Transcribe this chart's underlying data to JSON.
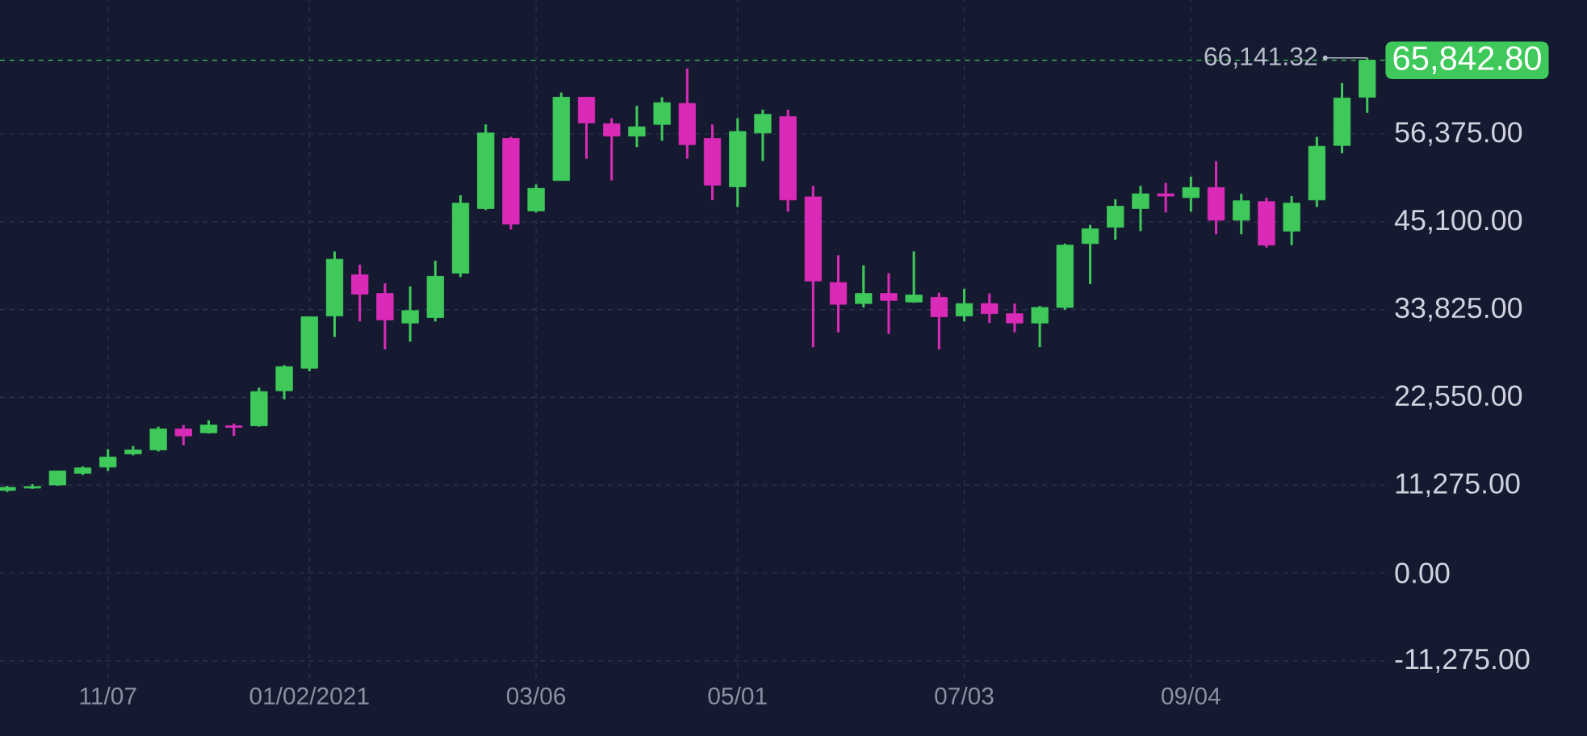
{
  "chart_data": {
    "type": "candlestick",
    "x": [
      "2020-10-10",
      "2020-10-17",
      "2020-10-24",
      "2020-10-31",
      "2020-11-07",
      "2020-11-14",
      "2020-11-21",
      "2020-11-28",
      "2020-12-05",
      "2020-12-12",
      "2020-12-19",
      "2020-12-26",
      "2021-01-02",
      "2021-01-09",
      "2021-01-16",
      "2021-01-23",
      "2021-01-30",
      "2021-02-06",
      "2021-02-13",
      "2021-02-20",
      "2021-02-27",
      "2021-03-06",
      "2021-03-13",
      "2021-03-20",
      "2021-03-27",
      "2021-04-03",
      "2021-04-10",
      "2021-04-17",
      "2021-04-24",
      "2021-05-01",
      "2021-05-08",
      "2021-05-15",
      "2021-05-22",
      "2021-05-29",
      "2021-06-05",
      "2021-06-12",
      "2021-06-19",
      "2021-06-26",
      "2021-07-03",
      "2021-07-10",
      "2021-07-17",
      "2021-07-24",
      "2021-07-31",
      "2021-08-07",
      "2021-08-14",
      "2021-08-21",
      "2021-08-28",
      "2021-09-04",
      "2021-09-11",
      "2021-09-18",
      "2021-09-25",
      "2021-10-02",
      "2021-10-09",
      "2021-10-16",
      "2021-10-23"
    ],
    "ohlc": [
      [
        10600,
        11200,
        10400,
        11000
      ],
      [
        10900,
        11400,
        10800,
        11100
      ],
      [
        11300,
        13100,
        11200,
        13100
      ],
      [
        12800,
        13700,
        12600,
        13500
      ],
      [
        13600,
        15900,
        13100,
        14900
      ],
      [
        15300,
        16300,
        15100,
        15800
      ],
      [
        15800,
        18800,
        15600,
        18500
      ],
      [
        18500,
        19000,
        16400,
        17600
      ],
      [
        18000,
        19600,
        17900,
        19000
      ],
      [
        18900,
        19200,
        17600,
        18700
      ],
      [
        18900,
        23800,
        18800,
        23300
      ],
      [
        23400,
        26700,
        22300,
        26500
      ],
      [
        26300,
        32900,
        25900,
        32900
      ],
      [
        33000,
        41300,
        30300,
        40300
      ],
      [
        38300,
        39600,
        32300,
        35800
      ],
      [
        35900,
        37200,
        28700,
        32500
      ],
      [
        32100,
        36800,
        29700,
        33700
      ],
      [
        32800,
        40100,
        32300,
        38100
      ],
      [
        38500,
        48500,
        38000,
        47500
      ],
      [
        46800,
        57600,
        46600,
        56500
      ],
      [
        55800,
        56000,
        44100,
        44800
      ],
      [
        46500,
        49900,
        46300,
        49400
      ],
      [
        50400,
        61700,
        50400,
        61100
      ],
      [
        61100,
        61100,
        53200,
        57800
      ],
      [
        57700,
        58400,
        50400,
        56100
      ],
      [
        56100,
        60000,
        54700,
        57300
      ],
      [
        57600,
        61100,
        55500,
        60400
      ],
      [
        60300,
        64800,
        53200,
        55000
      ],
      [
        55800,
        57600,
        47900,
        49800
      ],
      [
        49600,
        58400,
        47000,
        56700
      ],
      [
        56500,
        59500,
        52900,
        58900
      ],
      [
        58600,
        59500,
        46400,
        47900
      ],
      [
        48300,
        49700,
        29000,
        37500
      ],
      [
        37300,
        40800,
        30900,
        34500
      ],
      [
        34600,
        39500,
        34100,
        35900
      ],
      [
        35900,
        38500,
        30700,
        35000
      ],
      [
        34800,
        41300,
        34700,
        35700
      ],
      [
        35400,
        36000,
        28700,
        32900
      ],
      [
        33000,
        36500,
        32300,
        34600
      ],
      [
        34600,
        35900,
        32100,
        33300
      ],
      [
        33300,
        34600,
        30900,
        32100
      ],
      [
        32100,
        34300,
        29000,
        34100
      ],
      [
        34100,
        42300,
        33800,
        42100
      ],
      [
        42300,
        44700,
        37100,
        44200
      ],
      [
        44400,
        48000,
        42800,
        47100
      ],
      [
        46800,
        49700,
        43900,
        48700
      ],
      [
        48700,
        50100,
        46300,
        48400
      ],
      [
        48200,
        50900,
        46400,
        49500
      ],
      [
        49500,
        52900,
        43500,
        45300
      ],
      [
        45300,
        48700,
        43500,
        47800
      ],
      [
        47700,
        48200,
        41800,
        42100
      ],
      [
        43900,
        48400,
        42100,
        47500
      ],
      [
        47900,
        56000,
        47000,
        54800
      ],
      [
        54900,
        62900,
        53900,
        61000
      ],
      [
        61100,
        66141.32,
        59100,
        65842.8
      ]
    ],
    "colors": [
      "#3ec95a",
      "#3ec95a",
      "#3ec95a",
      "#3ec95a",
      "#3ec95a",
      "#3ec95a",
      "#3ec95a",
      "#d92bb8",
      "#3ec95a",
      "#d92bb8",
      "#3ec95a",
      "#3ec95a",
      "#3ec95a",
      "#3ec95a",
      "#d92bb8",
      "#d92bb8",
      "#3ec95a",
      "#3ec95a",
      "#3ec95a",
      "#3ec95a",
      "#d92bb8",
      "#3ec95a",
      "#3ec95a",
      "#d92bb8",
      "#d92bb8",
      "#3ec95a",
      "#3ec95a",
      "#d92bb8",
      "#d92bb8",
      "#3ec95a",
      "#3ec95a",
      "#d92bb8",
      "#d92bb8",
      "#d92bb8",
      "#3ec95a",
      "#d92bb8",
      "#3ec95a",
      "#d92bb8",
      "#3ec95a",
      "#d92bb8",
      "#d92bb8",
      "#3ec95a",
      "#3ec95a",
      "#3ec95a",
      "#3ec95a",
      "#3ec95a",
      "#d92bb8",
      "#3ec95a",
      "#d92bb8",
      "#3ec95a",
      "#d92bb8",
      "#3ec95a",
      "#3ec95a",
      "#3ec95a",
      "#3ec95a"
    ],
    "xlim": [
      "2020-10-08",
      "2021-10-28"
    ],
    "xticks": [
      {
        "value": "2020-11-07",
        "label": "11/07"
      },
      {
        "value": "2021-01-02",
        "label": "01/02/2021"
      },
      {
        "value": "2021-03-06",
        "label": "03/06"
      },
      {
        "value": "2021-05-01",
        "label": "05/01"
      },
      {
        "value": "2021-07-03",
        "label": "07/03"
      },
      {
        "value": "2021-09-04",
        "label": "09/04"
      }
    ],
    "ylim": [
      -13470,
      73580
    ],
    "yticks": [
      {
        "value": -11275,
        "label": "-11,275.00"
      },
      {
        "value": 0,
        "label": "0.00"
      },
      {
        "value": 11275,
        "label": "11,275.00"
      },
      {
        "value": 22550,
        "label": "22,550.00"
      },
      {
        "value": 33825,
        "label": "33,825.00"
      },
      {
        "value": 45100,
        "label": "45,100.00"
      },
      {
        "value": 56375,
        "label": "56,375.00"
      }
    ],
    "grid": true,
    "ref_lines": [
      {
        "axis": "y",
        "value": 65842.8,
        "label": "65,842.80",
        "color": "#3ec95a",
        "line_style": "dashed"
      }
    ],
    "annotations": [
      {
        "text": "66,141.32",
        "x": "2021-10-23",
        "y": 66141.32
      }
    ]
  }
}
